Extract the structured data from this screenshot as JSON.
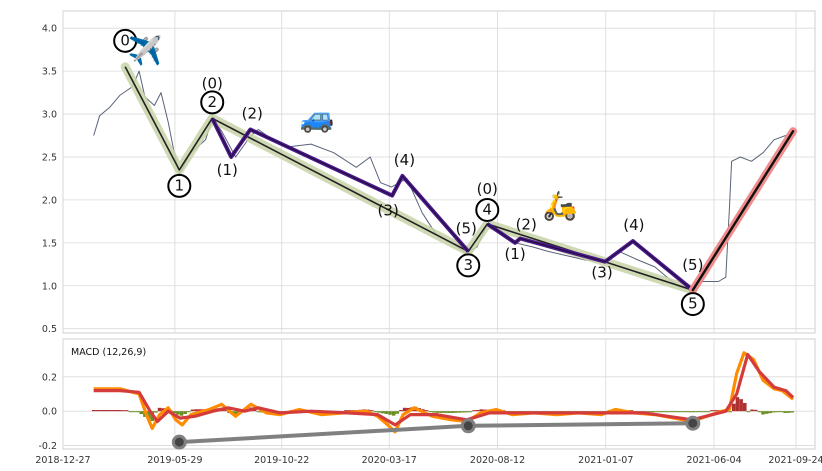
{
  "chart_data": [
    {
      "type": "line",
      "x_ticks": [
        "2018-12-27",
        "2019-05-29",
        "2019-10-22",
        "2020-03-17",
        "2020-08-12",
        "2021-01-07",
        "2021-06-04",
        "2021-09-24"
      ],
      "xlim": [
        "2018-12-27",
        "2021-10-20"
      ],
      "ylim": [
        0.45,
        4.2
      ],
      "y_ticks": [
        0.5,
        1.0,
        1.5,
        2.0,
        2.5,
        3.0,
        3.5,
        4.0
      ],
      "grid": true,
      "price_series": [
        {
          "date": "2019-02-07",
          "close": 2.75
        },
        {
          "date": "2019-02-15",
          "close": 2.98
        },
        {
          "date": "2019-03-01",
          "close": 3.08
        },
        {
          "date": "2019-03-15",
          "close": 3.22
        },
        {
          "date": "2019-04-01",
          "close": 3.32
        },
        {
          "date": "2019-04-10",
          "close": 3.5
        },
        {
          "date": "2019-04-18",
          "close": 3.2
        },
        {
          "date": "2019-05-01",
          "close": 3.1
        },
        {
          "date": "2019-05-10",
          "close": 3.25
        },
        {
          "date": "2019-05-20",
          "close": 2.9
        },
        {
          "date": "2019-05-28",
          "close": 2.55
        },
        {
          "date": "2019-06-04",
          "close": 2.3
        },
        {
          "date": "2019-06-20",
          "close": 2.55
        },
        {
          "date": "2019-07-10",
          "close": 2.7
        },
        {
          "date": "2019-07-19",
          "close": 2.95
        },
        {
          "date": "2019-08-01",
          "close": 2.8
        },
        {
          "date": "2019-08-20",
          "close": 2.5
        },
        {
          "date": "2019-09-10",
          "close": 2.75
        },
        {
          "date": "2019-09-20",
          "close": 2.82
        },
        {
          "date": "2019-10-10",
          "close": 2.7
        },
        {
          "date": "2019-11-01",
          "close": 2.62
        },
        {
          "date": "2019-12-01",
          "close": 2.65
        },
        {
          "date": "2020-01-01",
          "close": 2.55
        },
        {
          "date": "2020-02-01",
          "close": 2.38
        },
        {
          "date": "2020-02-20",
          "close": 2.5
        },
        {
          "date": "2020-03-05",
          "close": 2.2
        },
        {
          "date": "2020-03-20",
          "close": 2.15
        },
        {
          "date": "2020-04-10",
          "close": 2.25
        },
        {
          "date": "2020-05-01",
          "close": 1.85
        },
        {
          "date": "2020-05-20",
          "close": 1.6
        },
        {
          "date": "2020-06-10",
          "close": 1.5
        },
        {
          "date": "2020-06-30",
          "close": 1.38
        },
        {
          "date": "2020-07-15",
          "close": 1.45
        },
        {
          "date": "2020-07-29",
          "close": 1.72
        },
        {
          "date": "2020-08-20",
          "close": 1.62
        },
        {
          "date": "2020-09-05",
          "close": 1.5
        },
        {
          "date": "2020-09-30",
          "close": 1.45
        },
        {
          "date": "2020-10-20",
          "close": 1.4
        },
        {
          "date": "2020-11-15",
          "close": 1.35
        },
        {
          "date": "2020-12-10",
          "close": 1.3
        },
        {
          "date": "2021-01-05",
          "close": 1.28
        },
        {
          "date": "2021-01-25",
          "close": 1.4
        },
        {
          "date": "2021-02-20",
          "close": 1.3
        },
        {
          "date": "2021-03-15",
          "close": 1.22
        },
        {
          "date": "2021-04-01",
          "close": 1.1
        },
        {
          "date": "2021-04-15",
          "close": 1.0
        },
        {
          "date": "2021-05-01",
          "close": 0.95
        },
        {
          "date": "2021-05-20",
          "close": 1.05
        },
        {
          "date": "2021-06-10",
          "close": 1.05
        },
        {
          "date": "2021-06-20",
          "close": 1.1
        },
        {
          "date": "2021-06-25",
          "close": 1.9
        },
        {
          "date": "2021-06-28",
          "close": 2.45
        },
        {
          "date": "2021-07-10",
          "close": 2.5
        },
        {
          "date": "2021-07-25",
          "close": 2.45
        },
        {
          "date": "2021-08-10",
          "close": 2.55
        },
        {
          "date": "2021-08-25",
          "close": 2.7
        },
        {
          "date": "2021-09-10",
          "close": 2.75
        },
        {
          "date": "2021-09-20",
          "close": 2.75
        }
      ],
      "wave_lines": {
        "impulse": [
          {
            "date": "2019-03-22",
            "value": 3.55,
            "label": "0"
          },
          {
            "date": "2019-06-04",
            "value": 2.35,
            "label": "1"
          },
          {
            "date": "2019-07-19",
            "value": 2.95,
            "label": "2"
          },
          {
            "date": "2020-07-03",
            "value": 1.4,
            "label": "3"
          },
          {
            "date": "2020-07-29",
            "value": 1.72,
            "label": "4"
          },
          {
            "date": "2021-05-06",
            "value": 0.95,
            "label": "5"
          }
        ],
        "subwave": [
          {
            "date": "2019-07-19",
            "value": 2.95,
            "label": "(0)"
          },
          {
            "date": "2019-08-14",
            "value": 2.5,
            "label": "(1)"
          },
          {
            "date": "2019-09-09",
            "value": 2.82,
            "label": "(2)"
          },
          {
            "date": "2020-03-21",
            "value": 2.05,
            "label": "(3)"
          },
          {
            "date": "2020-04-04",
            "value": 2.28,
            "label": "(4)"
          },
          {
            "date": "2020-07-03",
            "value": 1.4,
            "label": "(5)"
          },
          {
            "date": "2020-07-29",
            "value": 1.72,
            "label": "(0)"
          },
          {
            "date": "2020-09-05",
            "value": 1.5,
            "label": "(1)"
          },
          {
            "date": "2020-09-12",
            "value": 1.55,
            "label": "(2)"
          },
          {
            "date": "2021-01-06",
            "value": 1.28,
            "label": "(3)"
          },
          {
            "date": "2021-02-13",
            "value": 1.52,
            "label": "(4)"
          },
          {
            "date": "2021-05-06",
            "value": 0.95,
            "label": "(5)"
          }
        ],
        "breakout": [
          {
            "date": "2021-05-06",
            "value": 0.95
          },
          {
            "date": "2021-09-20",
            "value": 2.8
          }
        ]
      },
      "emojis": [
        "✈️",
        "🚙",
        "🛵"
      ]
    },
    {
      "type": "line",
      "title": "MACD (12,26,9)",
      "ylim": [
        -0.22,
        0.42
      ],
      "y_ticks": [
        -0.2,
        0.0,
        0.2
      ],
      "grid": true,
      "macd_series": [
        {
          "date": "2019-02-07",
          "value": 0.13
        },
        {
          "date": "2019-03-15",
          "value": 0.13
        },
        {
          "date": "2019-04-10",
          "value": 0.1
        },
        {
          "date": "2019-04-20",
          "value": -0.02
        },
        {
          "date": "2019-04-28",
          "value": -0.1
        },
        {
          "date": "2019-05-08",
          "value": -0.02
        },
        {
          "date": "2019-05-20",
          "value": 0.02
        },
        {
          "date": "2019-05-30",
          "value": -0.05
        },
        {
          "date": "2019-06-08",
          "value": -0.08
        },
        {
          "date": "2019-06-20",
          "value": -0.02
        },
        {
          "date": "2019-07-15",
          "value": 0.01
        },
        {
          "date": "2019-08-01",
          "value": 0.04
        },
        {
          "date": "2019-08-20",
          "value": -0.03
        },
        {
          "date": "2019-09-10",
          "value": 0.04
        },
        {
          "date": "2019-10-01",
          "value": -0.01
        },
        {
          "date": "2019-10-20",
          "value": -0.02
        },
        {
          "date": "2019-11-15",
          "value": 0.01
        },
        {
          "date": "2019-12-15",
          "value": -0.02
        },
        {
          "date": "2020-01-15",
          "value": -0.01
        },
        {
          "date": "2020-02-15",
          "value": 0.0
        },
        {
          "date": "2020-03-01",
          "value": -0.03
        },
        {
          "date": "2020-03-15",
          "value": -0.08
        },
        {
          "date": "2020-03-25",
          "value": -0.12
        },
        {
          "date": "2020-04-05",
          "value": -0.02
        },
        {
          "date": "2020-04-20",
          "value": 0.02
        },
        {
          "date": "2020-05-15",
          "value": -0.03
        },
        {
          "date": "2020-06-10",
          "value": -0.05
        },
        {
          "date": "2020-07-01",
          "value": -0.06
        },
        {
          "date": "2020-07-20",
          "value": -0.01
        },
        {
          "date": "2020-08-10",
          "value": 0.01
        },
        {
          "date": "2020-09-01",
          "value": -0.02
        },
        {
          "date": "2020-10-01",
          "value": -0.01
        },
        {
          "date": "2020-11-01",
          "value": -0.02
        },
        {
          "date": "2020-12-01",
          "value": -0.01
        },
        {
          "date": "2021-01-01",
          "value": -0.02
        },
        {
          "date": "2021-01-20",
          "value": 0.01
        },
        {
          "date": "2021-02-15",
          "value": -0.01
        },
        {
          "date": "2021-03-15",
          "value": -0.02
        },
        {
          "date": "2021-04-10",
          "value": -0.04
        },
        {
          "date": "2021-05-05",
          "value": -0.06
        },
        {
          "date": "2021-05-25",
          "value": -0.03
        },
        {
          "date": "2021-06-15",
          "value": 0.0
        },
        {
          "date": "2021-06-25",
          "value": 0.01
        },
        {
          "date": "2021-07-05",
          "value": 0.22
        },
        {
          "date": "2021-07-15",
          "value": 0.34
        },
        {
          "date": "2021-07-28",
          "value": 0.3
        },
        {
          "date": "2021-08-10",
          "value": 0.18
        },
        {
          "date": "2021-08-25",
          "value": 0.13
        },
        {
          "date": "2021-09-05",
          "value": 0.12
        },
        {
          "date": "2021-09-20",
          "value": 0.07
        }
      ],
      "signal_series": [
        {
          "date": "2019-02-07",
          "value": 0.12
        },
        {
          "date": "2019-03-15",
          "value": 0.12
        },
        {
          "date": "2019-04-10",
          "value": 0.11
        },
        {
          "date": "2019-04-25",
          "value": 0.0
        },
        {
          "date": "2019-05-05",
          "value": -0.06
        },
        {
          "date": "2019-05-20",
          "value": 0.0
        },
        {
          "date": "2019-06-05",
          "value": -0.04
        },
        {
          "date": "2019-06-25",
          "value": -0.03
        },
        {
          "date": "2019-07-20",
          "value": 0.0
        },
        {
          "date": "2019-08-10",
          "value": 0.02
        },
        {
          "date": "2019-09-01",
          "value": 0.0
        },
        {
          "date": "2019-09-20",
          "value": 0.02
        },
        {
          "date": "2019-10-20",
          "value": -0.01
        },
        {
          "date": "2019-12-01",
          "value": 0.0
        },
        {
          "date": "2020-01-20",
          "value": -0.01
        },
        {
          "date": "2020-03-01",
          "value": -0.02
        },
        {
          "date": "2020-03-25",
          "value": -0.08
        },
        {
          "date": "2020-04-15",
          "value": -0.02
        },
        {
          "date": "2020-05-20",
          "value": -0.02
        },
        {
          "date": "2020-07-01",
          "value": -0.05
        },
        {
          "date": "2020-08-01",
          "value": -0.01
        },
        {
          "date": "2020-10-01",
          "value": -0.01
        },
        {
          "date": "2021-01-01",
          "value": -0.01
        },
        {
          "date": "2021-03-01",
          "value": -0.01
        },
        {
          "date": "2021-05-05",
          "value": -0.05
        },
        {
          "date": "2021-06-20",
          "value": 0.0
        },
        {
          "date": "2021-07-05",
          "value": 0.1
        },
        {
          "date": "2021-07-20",
          "value": 0.33
        },
        {
          "date": "2021-08-05",
          "value": 0.23
        },
        {
          "date": "2021-08-25",
          "value": 0.14
        },
        {
          "date": "2021-09-10",
          "value": 0.12
        },
        {
          "date": "2021-09-20",
          "value": 0.08
        }
      ],
      "trend_line": [
        {
          "date": "2019-06-04",
          "value": -0.18
        },
        {
          "date": "2020-07-03",
          "value": -0.085
        },
        {
          "date": "2021-05-06",
          "value": -0.07
        }
      ]
    }
  ],
  "colors": {
    "price": "#5a6478",
    "impulse_halo": "#c7d3a8",
    "impulse": "#222222",
    "subwave": "#4b1a8a",
    "breakout_halo": "#f08c8c",
    "breakout": "#111111",
    "macd": "#ff8c00",
    "signal": "#d43c3c",
    "hist_pos": "#b03030",
    "hist_neg": "#6b8e23",
    "trend": "#808080",
    "grid": "#d9d9d9",
    "axis": "#cfcfcf"
  }
}
